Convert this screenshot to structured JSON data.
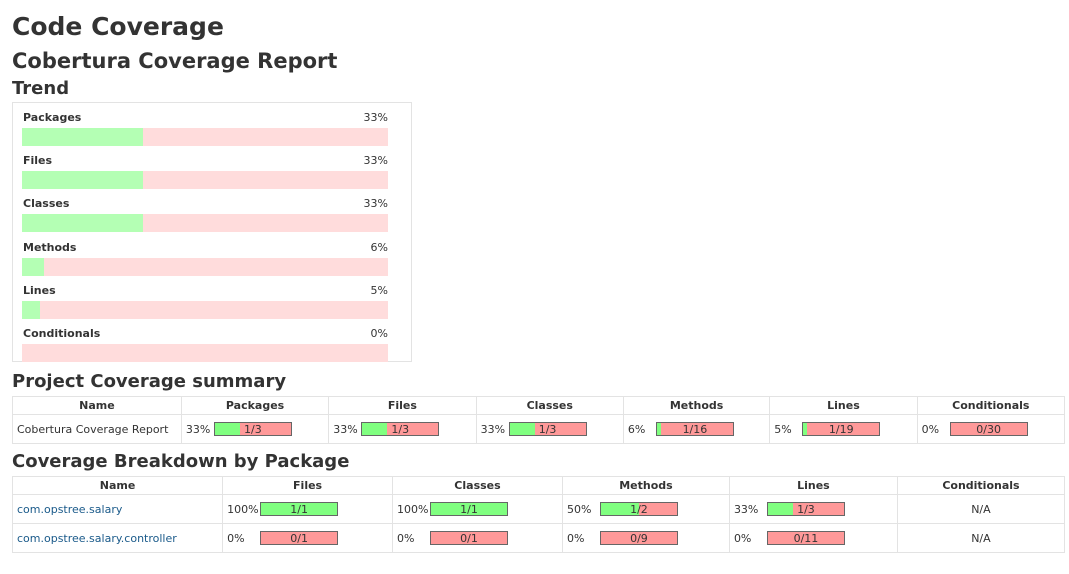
{
  "page_title": "Code Coverage",
  "report_title": "Cobertura Coverage Report",
  "trend_heading": "Trend",
  "trend": [
    {
      "label": "Packages",
      "pct_text": "33%",
      "pct": 33
    },
    {
      "label": "Files",
      "pct_text": "33%",
      "pct": 33
    },
    {
      "label": "Classes",
      "pct_text": "33%",
      "pct": 33
    },
    {
      "label": "Methods",
      "pct_text": "6%",
      "pct": 6
    },
    {
      "label": "Lines",
      "pct_text": "5%",
      "pct": 5
    },
    {
      "label": "Conditionals",
      "pct_text": "0%",
      "pct": 0
    }
  ],
  "summary_heading": "Project Coverage summary",
  "summary_headers": [
    "Name",
    "Packages",
    "Files",
    "Classes",
    "Methods",
    "Lines",
    "Conditionals"
  ],
  "summary_row": {
    "name": "Cobertura Coverage Report",
    "cells": [
      {
        "pct_text": "33%",
        "pct": 33,
        "ratio": "1/3"
      },
      {
        "pct_text": "33%",
        "pct": 33,
        "ratio": "1/3"
      },
      {
        "pct_text": "33%",
        "pct": 33,
        "ratio": "1/3"
      },
      {
        "pct_text": "6%",
        "pct": 6,
        "ratio": "1/16"
      },
      {
        "pct_text": "5%",
        "pct": 5,
        "ratio": "1/19"
      },
      {
        "pct_text": "0%",
        "pct": 0,
        "ratio": "0/30"
      }
    ]
  },
  "breakdown_heading": "Coverage Breakdown by Package",
  "breakdown_headers": [
    "Name",
    "Files",
    "Classes",
    "Methods",
    "Lines",
    "Conditionals"
  ],
  "breakdown_rows": [
    {
      "name": "com.opstree.salary",
      "cells": [
        {
          "pct_text": "100%",
          "pct": 100,
          "ratio": "1/1"
        },
        {
          "pct_text": "100%",
          "pct": 100,
          "ratio": "1/1"
        },
        {
          "pct_text": "50%",
          "pct": 50,
          "ratio": "1/2"
        },
        {
          "pct_text": "33%",
          "pct": 33,
          "ratio": "1/3"
        }
      ],
      "conditionals": "N/A"
    },
    {
      "name": "com.opstree.salary.controller",
      "cells": [
        {
          "pct_text": "0%",
          "pct": 0,
          "ratio": "0/1"
        },
        {
          "pct_text": "0%",
          "pct": 0,
          "ratio": "0/1"
        },
        {
          "pct_text": "0%",
          "pct": 0,
          "ratio": "0/9"
        },
        {
          "pct_text": "0%",
          "pct": 0,
          "ratio": "0/11"
        }
      ],
      "conditionals": "N/A"
    }
  ],
  "colors": {
    "trend_fill": "#b4ffb4",
    "trend_empty": "#ffdcdc",
    "bar_fill": "#80ff80",
    "bar_empty": "#ff9999",
    "link": "#1a5a8a"
  }
}
